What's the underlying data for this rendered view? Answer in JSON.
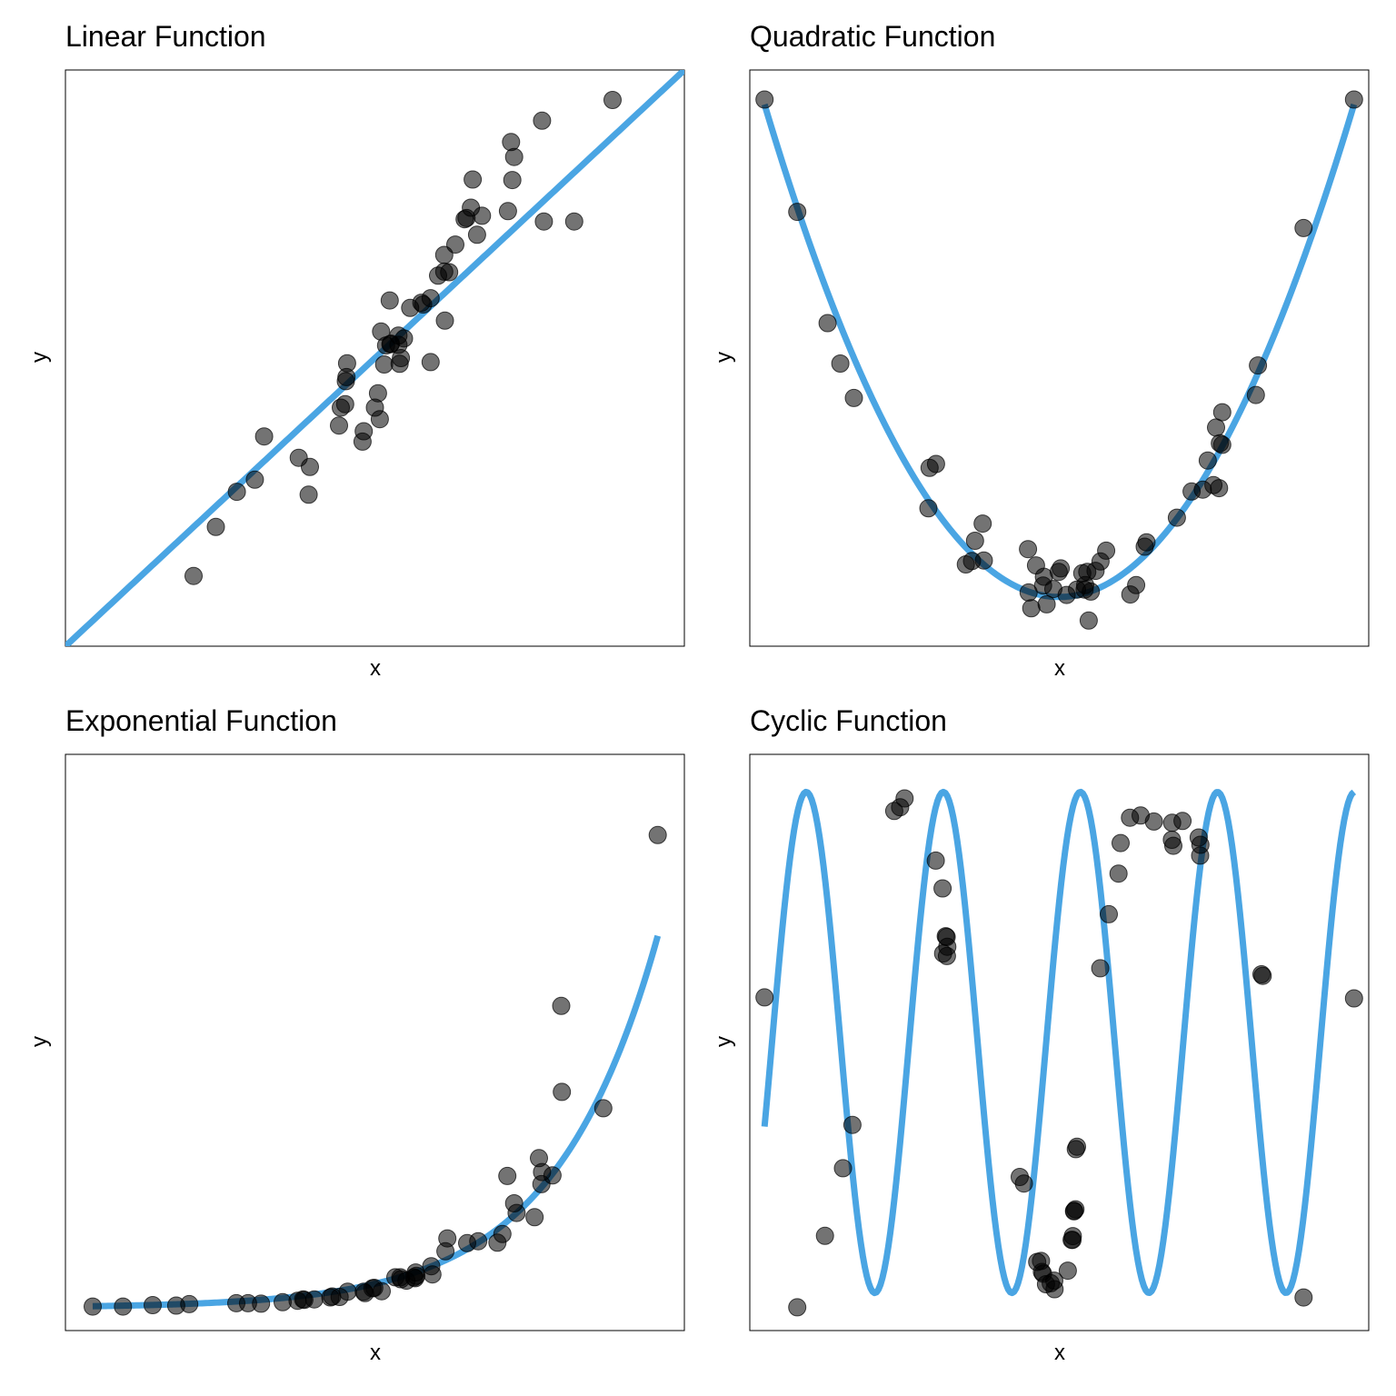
{
  "line_color": "#4aa5e3",
  "point_color": "#000000",
  "chart_data": [
    {
      "type": "scatter",
      "title": "Linear Function",
      "xlabel": "x",
      "ylabel": "y",
      "xlim": [
        0,
        1
      ],
      "ylim": [
        0,
        1
      ],
      "grid": false,
      "fit_curve": "linear",
      "series": [
        {
          "x": [
            0.207,
            0.243,
            0.277,
            0.306,
            0.321,
            0.377,
            0.393,
            0.395,
            0.445,
            0.442,
            0.452,
            0.453,
            0.455,
            0.454,
            0.48,
            0.482,
            0.5,
            0.505,
            0.508,
            0.51,
            0.515,
            0.518,
            0.524,
            0.525,
            0.526,
            0.538,
            0.538,
            0.54,
            0.542,
            0.547,
            0.557,
            0.575,
            0.578,
            0.59,
            0.59,
            0.602,
            0.612,
            0.612,
            0.613,
            0.62,
            0.63,
            0.645,
            0.648,
            0.655,
            0.658,
            0.665,
            0.673,
            0.715,
            0.72,
            0.725,
            0.722,
            0.77,
            0.773,
            0.822,
            0.884
          ],
          "y": [
            0.122,
            0.207,
            0.268,
            0.289,
            0.364,
            0.327,
            0.263,
            0.311,
            0.414,
            0.383,
            0.42,
            0.46,
            0.491,
            0.467,
            0.355,
            0.373,
            0.414,
            0.439,
            0.394,
            0.546,
            0.489,
            0.522,
            0.6,
            0.524,
            0.525,
            0.523,
            0.539,
            0.49,
            0.5,
            0.534,
            0.587,
            0.596,
            0.593,
            0.604,
            0.493,
            0.643,
            0.65,
            0.679,
            0.565,
            0.649,
            0.697,
            0.741,
            0.743,
            0.761,
            0.81,
            0.714,
            0.747,
            0.755,
            0.875,
            0.849,
            0.809,
            0.912,
            0.737,
            0.737,
            0.948
          ]
        }
      ]
    },
    {
      "type": "scatter",
      "title": "Quadratic Function",
      "xlabel": "x",
      "ylabel": "y",
      "xlim": [
        -1.05,
        1.05
      ],
      "ylim": [
        -0.1,
        1.07
      ],
      "grid": false,
      "fit_curve": "quadratic",
      "series": [
        {
          "x": [
            -1.0,
            -0.889,
            -0.786,
            -0.743,
            -0.697,
            -0.444,
            -0.418,
            -0.44,
            -0.317,
            -0.286,
            -0.296,
            -0.256,
            -0.26,
            -0.104,
            -0.106,
            -0.095,
            -0.079,
            -0.055,
            -0.052,
            -0.043,
            -0.02,
            -0.002,
            0.005,
            0.025,
            0.06,
            0.078,
            0.086,
            0.088,
            0.095,
            0.1,
            0.107,
            0.123,
            0.14,
            0.159,
            0.241,
            0.261,
            0.296,
            0.29,
            0.399,
            0.449,
            0.487,
            0.504,
            0.523,
            0.532,
            0.553,
            0.542,
            0.553,
            0.545,
            0.674,
            0.667,
            0.829,
            1.0
          ],
          "y": [
            1.01,
            0.782,
            0.556,
            0.474,
            0.404,
            0.18,
            0.27,
            0.262,
            0.066,
            0.114,
            0.073,
            0.074,
            0.149,
            0.009,
            0.097,
            -0.023,
            0.064,
            0.023,
            0.041,
            -0.015,
            0.016,
            0.051,
            0.058,
            0.004,
            0.015,
            0.048,
            0.015,
            0.024,
            0.051,
            -0.048,
            0.011,
            0.053,
            0.072,
            0.094,
            0.005,
            0.024,
            0.111,
            0.102,
            0.161,
            0.214,
            0.218,
            0.277,
            0.227,
            0.344,
            0.309,
            0.221,
            0.375,
            0.312,
            0.47,
            0.41,
            0.749,
            1.01
          ]
        }
      ]
    },
    {
      "type": "scatter",
      "title": "Exponential Function",
      "xlabel": "x",
      "ylabel": "y",
      "xlim": [
        0,
        1
      ],
      "ylim": [
        -0.05,
        1.15
      ],
      "grid": false,
      "fit_curve": "exponential",
      "series": [
        {
          "x": [
            0.044,
            0.093,
            0.141,
            0.179,
            0.2,
            0.276,
            0.295,
            0.316,
            0.351,
            0.375,
            0.384,
            0.386,
            0.402,
            0.428,
            0.431,
            0.443,
            0.456,
            0.482,
            0.484,
            0.496,
            0.499,
            0.511,
            0.533,
            0.541,
            0.542,
            0.551,
            0.563,
            0.565,
            0.566,
            0.567,
            0.591,
            0.593,
            0.614,
            0.617,
            0.649,
            0.667,
            0.698,
            0.706,
            0.729,
            0.725,
            0.714,
            0.758,
            0.77,
            0.769,
            0.765,
            0.787,
            0.869,
            0.802,
            0.801,
            0.957
          ],
          "y": [
            0.0,
            0.0,
            0.003,
            0.002,
            0.005,
            0.007,
            0.007,
            0.006,
            0.009,
            0.012,
            0.015,
            0.014,
            0.015,
            0.019,
            0.021,
            0.02,
            0.031,
            0.031,
            0.028,
            0.038,
            0.039,
            0.032,
            0.061,
            0.061,
            0.057,
            0.054,
            0.061,
            0.059,
            0.071,
            0.064,
            0.084,
            0.067,
            0.115,
            0.142,
            0.132,
            0.136,
            0.133,
            0.151,
            0.195,
            0.215,
            0.272,
            0.186,
            0.28,
            0.255,
            0.309,
            0.273,
            0.413,
            0.447,
            0.626,
            0.982
          ]
        }
      ]
    },
    {
      "type": "scatter",
      "title": "Cyclic Function",
      "xlabel": "x",
      "ylabel": "y",
      "xlim": [
        -1.05,
        1.05
      ],
      "ylim": [
        -1.15,
        1.15
      ],
      "grid": false,
      "fit_curve": "cyclic",
      "series": [
        {
          "x": [
            -1.0,
            -0.889,
            -0.795,
            -0.734,
            -0.702,
            -0.56,
            -0.54,
            -0.525,
            -0.419,
            -0.396,
            -0.385,
            -0.382,
            -0.38,
            -0.394,
            -0.381,
            -0.134,
            -0.12,
            -0.075,
            -0.062,
            -0.059,
            -0.055,
            -0.045,
            -0.029,
            -0.016,
            -0.017,
            0.029,
            0.042,
            0.045,
            0.046,
            0.051,
            0.055,
            0.05,
            0.056,
            0.06,
            0.139,
            0.168,
            0.201,
            0.208,
            0.24,
            0.276,
            0.321,
            0.383,
            0.382,
            0.387,
            0.418,
            0.473,
            0.479,
            0.478,
            0.686,
            0.69,
            0.829,
            1.0
          ],
          "y": [
            0.18,
            -1.057,
            -0.772,
            -0.502,
            -0.329,
            0.924,
            0.939,
            0.974,
            0.726,
            0.615,
            0.424,
            0.421,
            0.382,
            0.355,
            0.345,
            -0.537,
            -0.563,
            -0.876,
            -0.872,
            -0.916,
            -0.923,
            -0.965,
            -0.961,
            -0.985,
            -0.951,
            -0.911,
            -0.788,
            -0.788,
            -0.773,
            -0.672,
            -0.666,
            -0.674,
            -0.426,
            -0.416,
            0.296,
            0.512,
            0.674,
            0.796,
            0.897,
            0.906,
            0.882,
            0.877,
            0.809,
            0.785,
            0.884,
            0.818,
            0.789,
            0.746,
            0.272,
            0.266,
            -1.018,
            0.176
          ]
        }
      ]
    }
  ]
}
